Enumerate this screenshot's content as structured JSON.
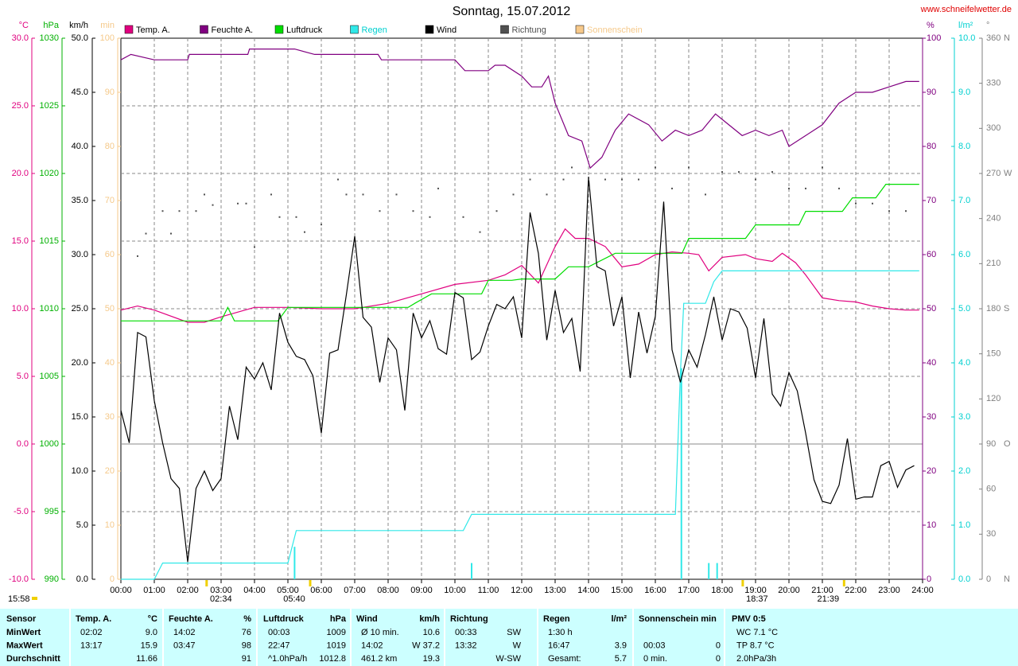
{
  "chart_data": {
    "type": "line",
    "title": "Sonntag, 15.07.2012",
    "source": "www.schneifelwetter.de",
    "current_time": "15:58",
    "xlim": [
      0,
      24
    ],
    "xticks": [
      {
        "value": 0,
        "label": "00:00"
      },
      {
        "value": 1,
        "label": "01:00"
      },
      {
        "value": 2,
        "label": "02:00"
      },
      {
        "value": 3,
        "label": "03:00"
      },
      {
        "value": 4,
        "label": "04:00"
      },
      {
        "value": 5,
        "label": "05:00"
      },
      {
        "value": 6,
        "label": "06:00"
      },
      {
        "value": 7,
        "label": "07:00"
      },
      {
        "value": 8,
        "label": "08:00"
      },
      {
        "value": 9,
        "label": "09:00"
      },
      {
        "value": 10,
        "label": "10:00"
      },
      {
        "value": 11,
        "label": "11:00"
      },
      {
        "value": 12,
        "label": "12:00"
      },
      {
        "value": 13,
        "label": "13:00"
      },
      {
        "value": 14,
        "label": "14:00"
      },
      {
        "value": 15,
        "label": "15:00"
      },
      {
        "value": 16,
        "label": "16:00"
      },
      {
        "value": 17,
        "label": "17:00"
      },
      {
        "value": 18,
        "label": "18:00"
      },
      {
        "value": 19,
        "label": "19:00"
      },
      {
        "value": 20,
        "label": "20:00"
      },
      {
        "value": 21,
        "label": "21:00"
      },
      {
        "value": 22,
        "label": "22:00"
      },
      {
        "value": 23,
        "label": "23:00"
      },
      {
        "value": 24,
        "label": "24:00"
      }
    ],
    "grid": true,
    "grid_axis": "temp",
    "axes": [
      {
        "id": "temp",
        "side": "left",
        "unit": "°C",
        "color": "#e0007f",
        "ylim": [
          -10,
          30
        ],
        "yticks": [
          {
            "value": -10,
            "label": "-10.0"
          },
          {
            "value": -5,
            "label": "-5.0"
          },
          {
            "value": 0,
            "label": "0.0"
          },
          {
            "value": 5,
            "label": "5.0"
          },
          {
            "value": 10,
            "label": "10.0"
          },
          {
            "value": 15,
            "label": "15.0"
          },
          {
            "value": 20,
            "label": "20.0"
          },
          {
            "value": 25,
            "label": "25.0"
          },
          {
            "value": 30,
            "label": "30.0"
          }
        ]
      },
      {
        "id": "press",
        "side": "left",
        "unit": "hPa",
        "color": "#00b000",
        "ylim": [
          990,
          1030
        ],
        "yticks": [
          990,
          995,
          1000,
          1005,
          1010,
          1015,
          1020,
          1025,
          1030
        ]
      },
      {
        "id": "wind",
        "side": "left",
        "unit": "km/h",
        "color": "#000000",
        "ylim": [
          0,
          50
        ],
        "yticks": [
          {
            "value": 0,
            "label": "0.0"
          },
          {
            "value": 5,
            "label": "5.0"
          },
          {
            "value": 10,
            "label": "10.0"
          },
          {
            "value": 15,
            "label": "15.0"
          },
          {
            "value": 20,
            "label": "20.0"
          },
          {
            "value": 25,
            "label": "25.0"
          },
          {
            "value": 30,
            "label": "30.0"
          },
          {
            "value": 35,
            "label": "35.0"
          },
          {
            "value": 40,
            "label": "40.0"
          },
          {
            "value": 45,
            "label": "45.0"
          },
          {
            "value": 50,
            "label": "50.0"
          }
        ]
      },
      {
        "id": "sun",
        "side": "left",
        "unit": "min",
        "color": "#f5c98a",
        "ylim": [
          0,
          100
        ],
        "yticks": [
          0,
          10,
          20,
          30,
          40,
          50,
          60,
          70,
          80,
          90,
          100
        ]
      },
      {
        "id": "hum",
        "side": "right",
        "unit": "%",
        "color": "#800080",
        "ylim": [
          0,
          100
        ],
        "yticks": [
          0,
          10,
          20,
          30,
          40,
          50,
          60,
          70,
          80,
          90,
          100
        ]
      },
      {
        "id": "rain",
        "side": "right",
        "unit": "l/m²",
        "color": "#00d0d0",
        "ylim": [
          0,
          10
        ],
        "yticks": [
          {
            "value": 0,
            "label": "0.0"
          },
          {
            "value": 1,
            "label": "1.0"
          },
          {
            "value": 2,
            "label": "2.0"
          },
          {
            "value": 3,
            "label": "3.0"
          },
          {
            "value": 4,
            "label": "4.0"
          },
          {
            "value": 5,
            "label": "5.0"
          },
          {
            "value": 6,
            "label": "6.0"
          },
          {
            "value": 7,
            "label": "7.0"
          },
          {
            "value": 8,
            "label": "8.0"
          },
          {
            "value": 9,
            "label": "9.0"
          },
          {
            "value": 10,
            "label": "10.0"
          }
        ]
      },
      {
        "id": "dir",
        "side": "right",
        "unit": "°",
        "color": "#808080",
        "ylim": [
          0,
          360
        ],
        "yticks": [
          0,
          30,
          60,
          90,
          120,
          150,
          180,
          210,
          240,
          270,
          300,
          330,
          360
        ],
        "compass": [
          {
            "value": 0,
            "label": "N"
          },
          {
            "value": 90,
            "label": "O"
          },
          {
            "value": 180,
            "label": "S"
          },
          {
            "value": 270,
            "label": "W"
          },
          {
            "value": 360,
            "label": "N"
          }
        ]
      }
    ],
    "series": [
      {
        "name": "Temp. A.",
        "axis": "temp",
        "style": "line",
        "color": "#e0007f",
        "label_color": "#000000",
        "x": [
          0,
          0.5,
          1,
          2,
          2.5,
          3,
          4,
          5,
          6,
          7,
          8,
          9,
          10,
          11,
          11.5,
          12,
          12.5,
          13,
          13.3,
          13.6,
          14,
          14.5,
          15,
          15.5,
          16,
          16.5,
          17,
          17.3,
          17.6,
          18,
          18.7,
          19,
          19.5,
          19.8,
          20.2,
          20.5,
          21,
          21.5,
          22,
          22.5,
          23,
          23.5,
          23.9
        ],
        "values": [
          9.9,
          10.2,
          9.9,
          9.0,
          9.0,
          9.4,
          10.1,
          10.1,
          10.0,
          10.0,
          10.4,
          11.1,
          11.8,
          12.1,
          12.5,
          13.2,
          11.9,
          14.6,
          15.9,
          15.2,
          15.2,
          14.6,
          13.1,
          13.3,
          14.0,
          14.2,
          14.1,
          14.0,
          12.8,
          13.8,
          14.0,
          13.7,
          13.5,
          14.1,
          13.4,
          12.5,
          10.8,
          10.6,
          10.5,
          10.2,
          10.0,
          9.9,
          9.9
        ]
      },
      {
        "name": "Feuchte A.",
        "axis": "hum",
        "style": "line",
        "color": "#800080",
        "label_color": "#000000",
        "x": [
          0,
          0.3,
          1,
          2,
          2.05,
          3.8,
          3.85,
          5.2,
          5.8,
          7.7,
          7.8,
          10,
          10.3,
          11,
          11.2,
          11.5,
          12,
          12.3,
          12.6,
          12.8,
          13,
          13.4,
          13.8,
          14.05,
          14.4,
          14.8,
          15.2,
          15.8,
          16.2,
          16.6,
          17,
          17.4,
          17.8,
          18,
          18.6,
          19,
          19.4,
          19.8,
          20,
          20.5,
          21,
          21.5,
          22,
          22.5,
          23,
          23.5,
          23.9
        ],
        "values": [
          96,
          97,
          96,
          96,
          97,
          97,
          98,
          98,
          97,
          97,
          96,
          96,
          94,
          94,
          95,
          95,
          93,
          91,
          91,
          93,
          88,
          82,
          81,
          76,
          78,
          83,
          86,
          84,
          81,
          83,
          82,
          83,
          86,
          85,
          82,
          83,
          82,
          83,
          80,
          82,
          84,
          88,
          90,
          90,
          91,
          92,
          92
        ]
      },
      {
        "name": "Luftdruck",
        "axis": "press",
        "style": "line",
        "color": "#00dd00",
        "label_color": "#000000",
        "x": [
          0,
          3.0,
          3.2,
          3.4,
          4.7,
          5.0,
          8.6,
          8.8,
          9.3,
          10.0,
          10.8,
          11.0,
          11.7,
          12.0,
          13.0,
          13.4,
          14.0,
          14.8,
          16.8,
          17.0,
          18.7,
          19.0,
          20.3,
          20.5,
          21.6,
          21.9,
          22.6,
          22.9,
          23.9
        ],
        "values": [
          1009.1,
          1009.1,
          1010.1,
          1009.1,
          1009.1,
          1010.1,
          1010.1,
          1010.4,
          1011.1,
          1011.1,
          1011.1,
          1012.1,
          1012.1,
          1012.2,
          1012.2,
          1013.1,
          1013.1,
          1014.1,
          1014.1,
          1015.2,
          1015.2,
          1016.2,
          1016.2,
          1017.2,
          1017.2,
          1018.2,
          1018.2,
          1019.2,
          1019.2
        ]
      },
      {
        "name": "Regen",
        "axis": "rain",
        "style": "line",
        "color": "#30e8e8",
        "label_color": "#00d0d0",
        "x": [
          0,
          1.0,
          1.25,
          5.0,
          5.25,
          10.25,
          10.5,
          16.6,
          16.75,
          16.85,
          17.5,
          17.75,
          18.0,
          23.9
        ],
        "values": [
          0,
          0,
          0.3,
          0.3,
          0.9,
          0.9,
          1.2,
          1.2,
          3.8,
          5.1,
          5.1,
          5.5,
          5.7,
          5.7
        ],
        "bars_x": [
          5.2,
          10.5,
          16.78,
          17.6,
          17.85
        ],
        "bars": [
          0.6,
          0.3,
          3.9,
          0.3,
          0.3
        ]
      },
      {
        "name": "Wind",
        "axis": "wind",
        "style": "line",
        "color": "#000000",
        "label_color": "#000000",
        "x": [
          0,
          0.25,
          0.5,
          0.75,
          1,
          1.25,
          1.5,
          1.75,
          2,
          2.25,
          2.5,
          2.75,
          3,
          3.25,
          3.5,
          3.75,
          4,
          4.25,
          4.5,
          4.75,
          5,
          5.25,
          5.5,
          5.75,
          6,
          6.25,
          6.5,
          6.75,
          7,
          7.25,
          7.5,
          7.75,
          8,
          8.25,
          8.5,
          8.75,
          9,
          9.25,
          9.5,
          9.75,
          10,
          10.25,
          10.5,
          10.75,
          11,
          11.25,
          11.5,
          11.75,
          12,
          12.25,
          12.5,
          12.75,
          13,
          13.25,
          13.5,
          13.75,
          14,
          14.25,
          14.5,
          14.75,
          15,
          15.25,
          15.5,
          15.75,
          16,
          16.25,
          16.5,
          16.75,
          17,
          17.25,
          17.5,
          17.75,
          18,
          18.25,
          18.5,
          18.75,
          19,
          19.25,
          19.5,
          19.75,
          20,
          20.25,
          20.5,
          20.75,
          21,
          21.25,
          21.5,
          21.75,
          22,
          22.25,
          22.5,
          22.75,
          23,
          23.25,
          23.5,
          23.75
        ],
        "values": [
          15.6,
          12.6,
          22.8,
          22.4,
          16.5,
          12.6,
          9.3,
          8.4,
          1.6,
          8.4,
          10.0,
          8.2,
          9.3,
          16.0,
          12.9,
          19.6,
          18.5,
          20.0,
          17.5,
          24.6,
          21.9,
          20.6,
          20.3,
          18.8,
          13.5,
          20.9,
          21.2,
          26.3,
          31.7,
          24.2,
          23.3,
          18.2,
          22.3,
          21.2,
          15.6,
          24.6,
          22.3,
          23.9,
          21.3,
          20.8,
          26.5,
          26.0,
          20.3,
          21.0,
          23.4,
          25.4,
          25.0,
          26.1,
          22.3,
          33.9,
          30.1,
          22.1,
          26.7,
          22.8,
          24.1,
          19.2,
          37.2,
          28.9,
          28.5,
          23.4,
          26.1,
          18.6,
          24.7,
          20.9,
          24.3,
          34.9,
          21.2,
          18.2,
          21.2,
          19.6,
          22.6,
          26.1,
          22.1,
          25.0,
          24.7,
          23.2,
          18.6,
          24.1,
          17.1,
          16.0,
          19.1,
          17.4,
          13.5,
          9.2,
          7.2,
          7.0,
          8.7,
          13.0,
          7.4,
          7.6,
          7.6,
          10.5,
          10.9,
          8.5,
          10.1,
          10.5
        ]
      },
      {
        "name": "Richtung",
        "axis": "dir",
        "style": "dots",
        "color": "#505050",
        "label_color": "#505050",
        "x": [
          0.5,
          0.75,
          1.25,
          1.5,
          1.75,
          2.25,
          2.5,
          2.75,
          3.5,
          3.75,
          4.0,
          4.5,
          4.75,
          5.25,
          5.5,
          6.0,
          6.5,
          6.75,
          7.25,
          7.75,
          8.25,
          8.75,
          9.25,
          9.5,
          10.25,
          10.75,
          11.25,
          11.75,
          12.25,
          12.75,
          13.25,
          13.5,
          14.0,
          14.5,
          15.0,
          15.5,
          16.0,
          16.5,
          17.0,
          17.5,
          18.0,
          18.5,
          19.0,
          19.5,
          20.0,
          20.5,
          21.0,
          21.5,
          22.0,
          22.5,
          23.0,
          23.5
        ],
        "values": [
          215,
          230,
          245,
          230,
          245,
          245,
          256,
          249,
          250,
          250,
          221,
          256,
          241,
          241,
          231,
          236,
          266,
          256,
          256,
          245,
          256,
          245,
          241,
          260,
          241,
          231,
          245,
          256,
          266,
          256,
          266,
          274,
          266,
          266,
          266,
          266,
          274,
          260,
          274,
          256,
          271,
          271,
          266,
          271,
          260,
          260,
          274,
          260,
          250,
          250,
          245,
          245
        ]
      },
      {
        "name": "Sonnenschein",
        "axis": "sun",
        "style": "line",
        "color": "#f7c98a",
        "label_color": "#f5c98a"
      }
    ],
    "events": [
      {
        "label": "02:34"
      },
      {
        "label": "05:40"
      },
      {
        "label": "18:37"
      },
      {
        "label": "21:39"
      }
    ]
  },
  "table": {
    "columns": [
      {
        "header": "Sensor",
        "rows": [
          {
            "time": "MinWert"
          },
          {
            "time": "MaxWert"
          },
          {
            "time": "Durchschnitt"
          }
        ]
      },
      {
        "header": "Temp. A.",
        "unit": "°C",
        "rows": [
          {
            "time": "02:02",
            "value": "9.0"
          },
          {
            "time": "13:17",
            "value": "15.9"
          },
          {
            "value": "11.66"
          }
        ]
      },
      {
        "header": "Feuchte A.",
        "unit": "%",
        "rows": [
          {
            "time": "14:02",
            "value": "76"
          },
          {
            "time": "03:47",
            "value": "98"
          },
          {
            "value": "91"
          }
        ]
      },
      {
        "header": "Luftdruck",
        "unit": "hPa",
        "rows": [
          {
            "time": "00:03",
            "value": "1009"
          },
          {
            "time": "22:47",
            "value": "1019"
          },
          {
            "time": "^1.0hPa/h",
            "value": "1012.8"
          }
        ]
      },
      {
        "header": "Wind",
        "unit": "km/h",
        "rows": [
          {
            "time": "Ø 10 min.",
            "value": "10.6"
          },
          {
            "time": "14:02",
            "value": "W 37.2"
          },
          {
            "time": "461.2 km",
            "value": "19.3"
          }
        ]
      },
      {
        "header": "Richtung",
        "rows": [
          {
            "time": "00:33",
            "value": "SW"
          },
          {
            "time": "13:32",
            "value": "W"
          },
          {
            "value": "W-SW"
          }
        ]
      },
      {
        "header": "Regen",
        "unit": "l/m²",
        "rows": [
          {
            "time": "1:30 h"
          },
          {
            "time": "16:47",
            "value": "3.9"
          },
          {
            "time": "Gesamt:",
            "value": "5.7"
          }
        ]
      },
      {
        "header": "Sonnenschein min",
        "rows": [
          {},
          {
            "time": "00:03",
            "value": "0"
          },
          {
            "time": "0 min.",
            "value": "0"
          }
        ]
      },
      {
        "header": "PMV 0:5",
        "rows": [
          {
            "time": "WC 7.1 °C"
          },
          {
            "time": "TP 8.7 °C"
          },
          {
            "time": "2.0hPa/3h"
          }
        ]
      }
    ]
  }
}
